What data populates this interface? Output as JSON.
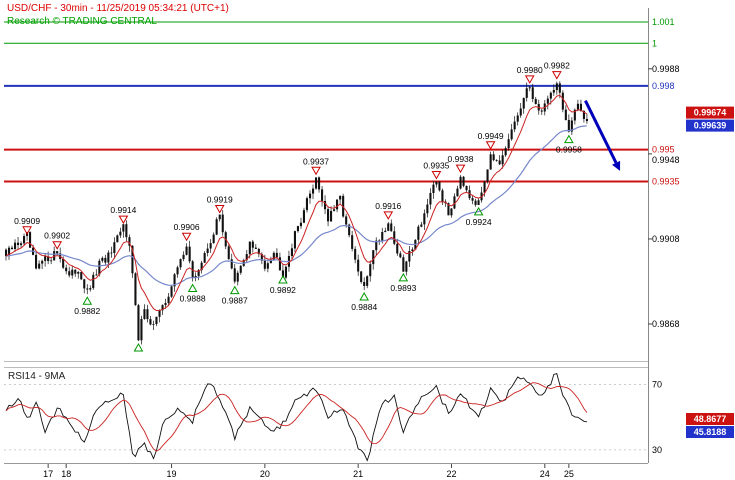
{
  "header": {
    "title": "USD/CHF - 30min - 11/25/2019 05:34:21 (UTC+1)",
    "subtitle": "Research © TRADING CENTRAL"
  },
  "chart_data": {
    "type": "candlestick",
    "symbol": "USD/CHF",
    "interval": "30min",
    "timestamp": "11/25/2019 05:34:21 (UTC+1)",
    "bars_total": 194,
    "y_range": [
      0.98506,
      1.00166
    ],
    "price_anchors": [
      [
        0,
        0.99
      ],
      [
        3,
        0.9905
      ],
      [
        7,
        0.9909
      ],
      [
        10,
        0.9893
      ],
      [
        12,
        0.9897
      ],
      [
        17,
        0.9902
      ],
      [
        21,
        0.989
      ],
      [
        24,
        0.9894
      ],
      [
        27,
        0.9882
      ],
      [
        31,
        0.9896
      ],
      [
        35,
        0.9901
      ],
      [
        39,
        0.9914
      ],
      [
        41,
        0.9907
      ],
      [
        44,
        0.986
      ],
      [
        46,
        0.9877
      ],
      [
        48,
        0.9867
      ],
      [
        52,
        0.9875
      ],
      [
        56,
        0.989
      ],
      [
        60,
        0.9906
      ],
      [
        62,
        0.9888
      ],
      [
        66,
        0.99
      ],
      [
        71,
        0.9919
      ],
      [
        74,
        0.9899
      ],
      [
        76,
        0.9887
      ],
      [
        81,
        0.9906
      ],
      [
        86,
        0.9896
      ],
      [
        89,
        0.9902
      ],
      [
        92,
        0.9892
      ],
      [
        97,
        0.9914
      ],
      [
        103,
        0.9937
      ],
      [
        107,
        0.9917
      ],
      [
        111,
        0.9927
      ],
      [
        114,
        0.9908
      ],
      [
        117,
        0.9892
      ],
      [
        119,
        0.9884
      ],
      [
        122,
        0.9904
      ],
      [
        127,
        0.9916
      ],
      [
        130,
        0.9902
      ],
      [
        132,
        0.9893
      ],
      [
        137,
        0.9913
      ],
      [
        143,
        0.9935
      ],
      [
        147,
        0.9919
      ],
      [
        151,
        0.9938
      ],
      [
        154,
        0.9929
      ],
      [
        157,
        0.9924
      ],
      [
        161,
        0.9949
      ],
      [
        164,
        0.9941
      ],
      [
        169,
        0.9963
      ],
      [
        174,
        0.998
      ],
      [
        177,
        0.9967
      ],
      [
        180,
        0.9974
      ],
      [
        183,
        0.9982
      ],
      [
        187,
        0.9958
      ],
      [
        190,
        0.9971
      ],
      [
        193,
        0.9964
      ]
    ],
    "pivot_highs": [
      {
        "bar": 7,
        "price": 0.9909,
        "label": "0.9909"
      },
      {
        "bar": 17,
        "price": 0.9902,
        "label": "0.9902"
      },
      {
        "bar": 39,
        "price": 0.9914,
        "label": "0.9914"
      },
      {
        "bar": 60,
        "price": 0.9906,
        "label": "0.9906"
      },
      {
        "bar": 71,
        "price": 0.9919,
        "label": "0.9919"
      },
      {
        "bar": 103,
        "price": 0.9937,
        "label": "0.9937"
      },
      {
        "bar": 127,
        "price": 0.9916,
        "label": "0.9916"
      },
      {
        "bar": 143,
        "price": 0.9935,
        "label": "0.9935"
      },
      {
        "bar": 151,
        "price": 0.9938,
        "label": "0.9938"
      },
      {
        "bar": 161,
        "price": 0.9949,
        "label": "0.9949"
      },
      {
        "bar": 174,
        "price": 0.998,
        "label": "0.9980"
      },
      {
        "bar": 183,
        "price": 0.9982,
        "label": "0.9982"
      }
    ],
    "pivot_lows": [
      {
        "bar": 27,
        "price": 0.9882,
        "label": "0.9882"
      },
      {
        "bar": 44,
        "price": 0.986,
        "label": ""
      },
      {
        "bar": 62,
        "price": 0.9888,
        "label": "0.9888"
      },
      {
        "bar": 76,
        "price": 0.9887,
        "label": "0.9887"
      },
      {
        "bar": 92,
        "price": 0.9892,
        "label": "0.9892"
      },
      {
        "bar": 119,
        "price": 0.9884,
        "label": "0.9884"
      },
      {
        "bar": 132,
        "price": 0.9893,
        "label": "0.9893"
      },
      {
        "bar": 157,
        "price": 0.9924,
        "label": "0.9924"
      },
      {
        "bar": 187,
        "price": 0.9958,
        "label": "0.9958"
      }
    ],
    "levels": [
      {
        "price": 1.001,
        "label": "1.001",
        "color": "#009900",
        "width": 1
      },
      {
        "price": 1.0,
        "label": "1",
        "color": "#009900",
        "width": 1
      },
      {
        "price": 0.998,
        "label": "0.998",
        "color": "#2233bb",
        "width": 2
      },
      {
        "price": 0.995,
        "label": "0.995",
        "color": "#cc1111",
        "width": 2
      },
      {
        "price": 0.9935,
        "label": "0.9935",
        "color": "#cc1111",
        "width": 2
      }
    ],
    "y_ticks": [
      {
        "value": 0.9988,
        "label": "0.9988",
        "dy": 0
      },
      {
        "value": 0.9948,
        "label": "0.9948",
        "dy": 6
      },
      {
        "value": 0.9908,
        "label": "0.9908",
        "dy": 0
      },
      {
        "value": 0.9868,
        "label": "0.9868",
        "dy": 0
      }
    ],
    "price_labels": [
      {
        "text": "0.99674",
        "bg": "#cc1111"
      },
      {
        "text": "0.99639",
        "bg": "#2233cc"
      }
    ],
    "x_ticks": [
      {
        "bar": 14,
        "label": "17"
      },
      {
        "bar": 20,
        "label": "18"
      },
      {
        "bar": 55,
        "label": "19"
      },
      {
        "bar": 86,
        "label": "20"
      },
      {
        "bar": 117,
        "label": "21"
      },
      {
        "bar": 148,
        "label": "22"
      },
      {
        "bar": 179,
        "label": "24"
      },
      {
        "bar": 187,
        "label": "25"
      }
    ],
    "arrow": {
      "from": {
        "bar": 192.5,
        "price": 0.9973
      },
      "to": {
        "bar": 204,
        "price": 0.994
      },
      "color": "#0000bb"
    },
    "rsi": {
      "label": "RSI14 - 9MA",
      "upper": 70,
      "lower": 30,
      "upper_label": "70",
      "lower_label": "30",
      "range": [
        22,
        80
      ],
      "anchors": [
        [
          0,
          55
        ],
        [
          4,
          62
        ],
        [
          7,
          48
        ],
        [
          10,
          60
        ],
        [
          13,
          40
        ],
        [
          17,
          55
        ],
        [
          20,
          50
        ],
        [
          26,
          35
        ],
        [
          29,
          52
        ],
        [
          34,
          60
        ],
        [
          39,
          65
        ],
        [
          42,
          26
        ],
        [
          46,
          33
        ],
        [
          49,
          25
        ],
        [
          52,
          45
        ],
        [
          57,
          55
        ],
        [
          62,
          48
        ],
        [
          67,
          72
        ],
        [
          71,
          62
        ],
        [
          76,
          38
        ],
        [
          81,
          55
        ],
        [
          86,
          45
        ],
        [
          91,
          42
        ],
        [
          96,
          60
        ],
        [
          103,
          68
        ],
        [
          107,
          50
        ],
        [
          112,
          56
        ],
        [
          117,
          31
        ],
        [
          120,
          24
        ],
        [
          125,
          58
        ],
        [
          129,
          62
        ],
        [
          132,
          40
        ],
        [
          137,
          60
        ],
        [
          143,
          68
        ],
        [
          147,
          52
        ],
        [
          151,
          64
        ],
        [
          157,
          50
        ],
        [
          161,
          66
        ],
        [
          165,
          58
        ],
        [
          170,
          74
        ],
        [
          174,
          70
        ],
        [
          178,
          62
        ],
        [
          183,
          78
        ],
        [
          185,
          65
        ],
        [
          188,
          52
        ],
        [
          191,
          49
        ],
        [
          193,
          48.9
        ]
      ],
      "value_labels": [
        {
          "text": "48.8677",
          "bg": "#cc1111"
        },
        {
          "text": "45.8188",
          "bg": "#2233cc"
        }
      ]
    },
    "colors": {
      "candle": "#111111",
      "ma_fast": "#cc2222",
      "ma_slow": "#7788cc",
      "rsi_line": "#111111",
      "rsi_ma": "#cc2222",
      "pivot_high": "#cc0000",
      "pivot_low": "#009900"
    }
  }
}
